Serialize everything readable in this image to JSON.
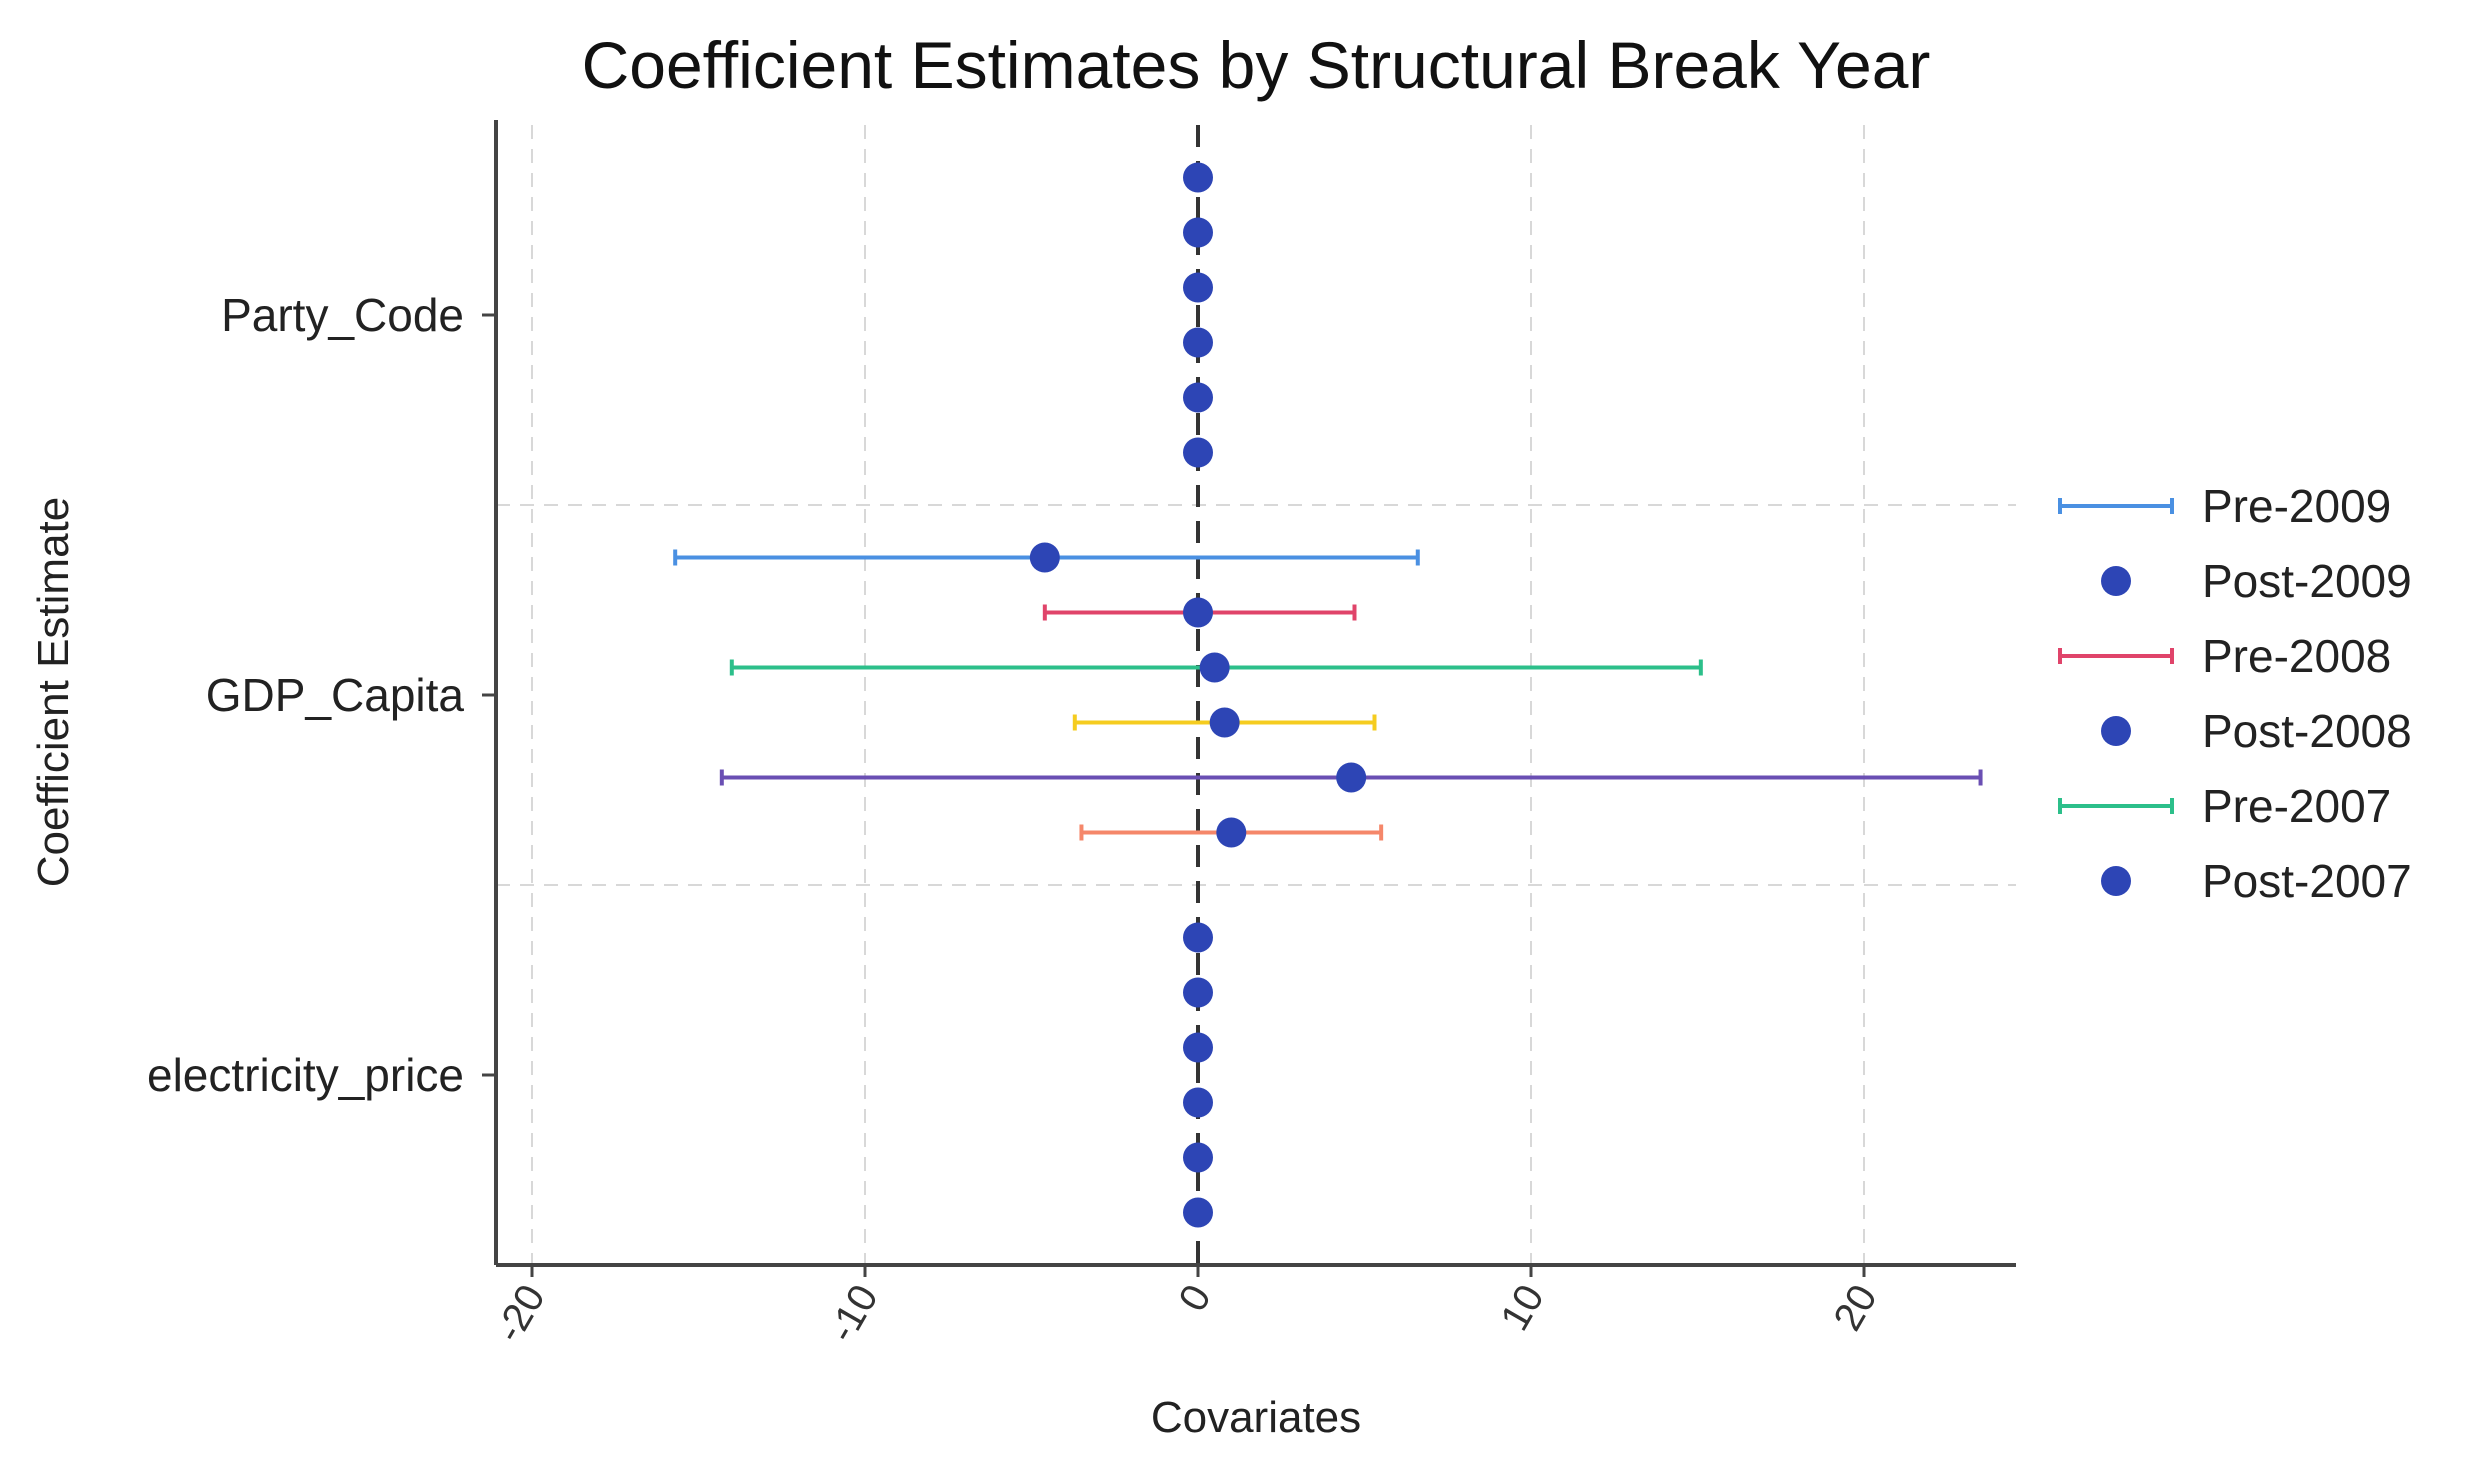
{
  "chart_data": {
    "type": "scatter",
    "title": "Coefficient Estimates by Structural Break Year",
    "xlabel": "Covariates",
    "ylabel": "Coefficient Estimate",
    "xlim": [
      -21,
      24.5
    ],
    "x_ticks": [
      -20,
      -10,
      0,
      10,
      20
    ],
    "x_tick_labels": [
      "-20",
      "-10",
      "0",
      "10",
      "20"
    ],
    "reference_line_x": 0,
    "grid": true,
    "legend_position": "right",
    "categories": [
      "Party_Code",
      "GDP_Capita",
      "electricity_price"
    ],
    "legend": [
      {
        "label": "Pre-2009",
        "kind": "errorbar",
        "color": "#4a90e2"
      },
      {
        "label": "Post-2009",
        "kind": "point",
        "color": "#2d45b5"
      },
      {
        "label": "Pre-2008",
        "kind": "errorbar",
        "color": "#e0446a"
      },
      {
        "label": "Post-2008",
        "kind": "point",
        "color": "#2d45b5"
      },
      {
        "label": "Pre-2007",
        "kind": "errorbar",
        "color": "#2cbf8a"
      },
      {
        "label": "Post-2007",
        "kind": "point",
        "color": "#2d45b5"
      }
    ],
    "point_color": "#2d45b5",
    "series": [
      {
        "category": "Party_Code",
        "estimates": [
          {
            "value": 0.0
          },
          {
            "value": 0.0
          },
          {
            "value": 0.0
          },
          {
            "value": 0.0
          },
          {
            "value": 0.0
          },
          {
            "value": 0.0
          }
        ]
      },
      {
        "category": "GDP_Capita",
        "estimates": [
          {
            "value": -4.6,
            "low": -15.7,
            "high": 6.6,
            "color": "#4a90e2"
          },
          {
            "value": 0.0,
            "low": -4.6,
            "high": 4.7,
            "color": "#e0446a"
          },
          {
            "value": 0.5,
            "low": -14.0,
            "high": 15.1,
            "color": "#2cbf8a"
          },
          {
            "value": 0.8,
            "low": -3.7,
            "high": 5.3,
            "color": "#f5cc1f"
          },
          {
            "value": 4.6,
            "low": -14.3,
            "high": 23.5,
            "color": "#6a4fb3"
          },
          {
            "value": 1.0,
            "low": -3.5,
            "high": 5.5,
            "color": "#f5876a"
          }
        ]
      },
      {
        "category": "electricity_price",
        "estimates": [
          {
            "value": 0.0
          },
          {
            "value": 0.0
          },
          {
            "value": 0.0
          },
          {
            "value": 0.0
          },
          {
            "value": 0.0
          },
          {
            "value": 0.0
          }
        ]
      }
    ]
  }
}
